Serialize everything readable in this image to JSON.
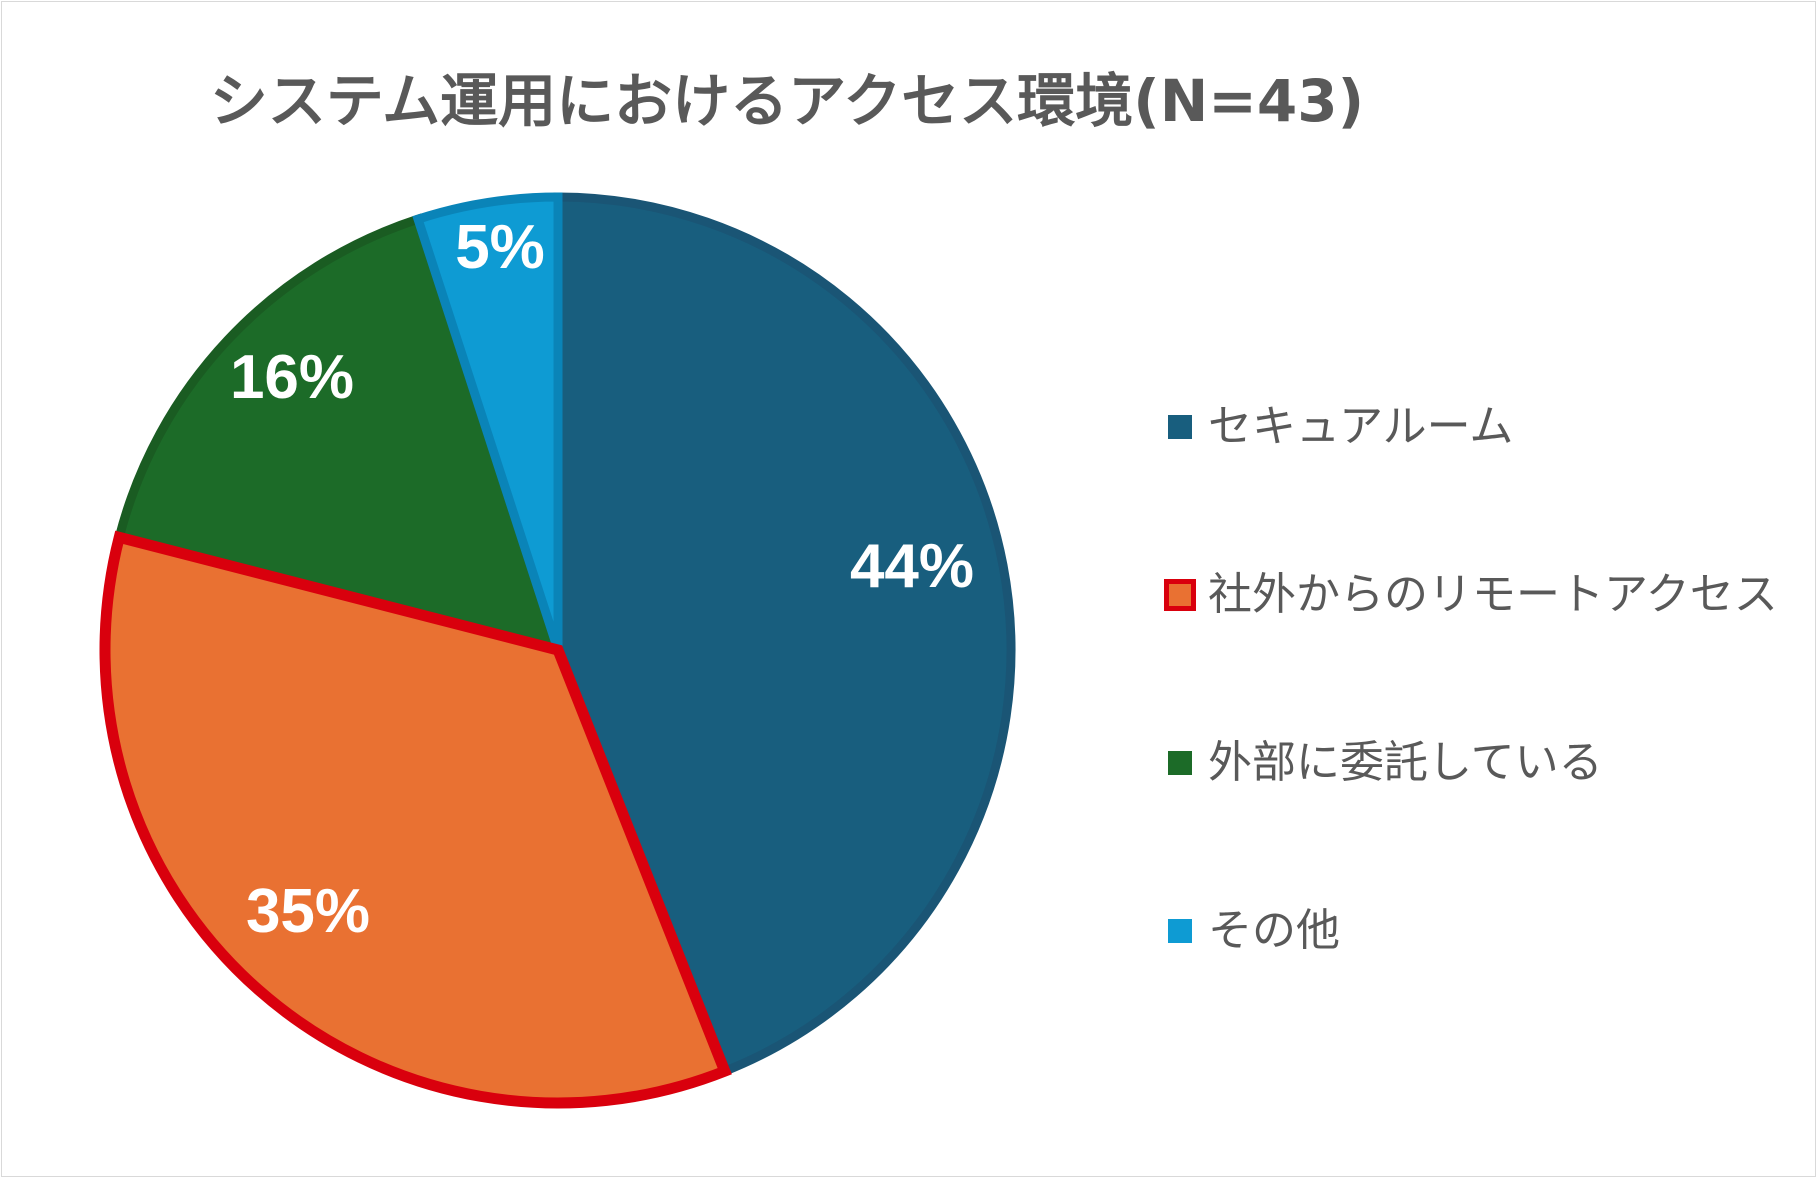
{
  "chart_data": {
    "type": "pie",
    "title": "システム運用におけるアクセス環境(N=43)",
    "start_angle_deg": 0,
    "direction": "clockwise",
    "slices": [
      {
        "name": "セキュアルーム",
        "value": 44,
        "label": "44%",
        "color": "#185e7e",
        "border_color": "#1a5575"
      },
      {
        "name": "社外からのリモートアクセス",
        "value": 35,
        "label": "35%",
        "color": "#e97132",
        "border_color": "#d9000d",
        "highlighted": true
      },
      {
        "name": "外部に委託している",
        "value": 16,
        "label": "16%",
        "color": "#1c6b28",
        "border_color": "#1a5c22"
      },
      {
        "name": "その他",
        "value": 5,
        "label": "5%",
        "color": "#0e9bd3",
        "border_color": "#0a84b8"
      }
    ],
    "legend_position": "right"
  }
}
